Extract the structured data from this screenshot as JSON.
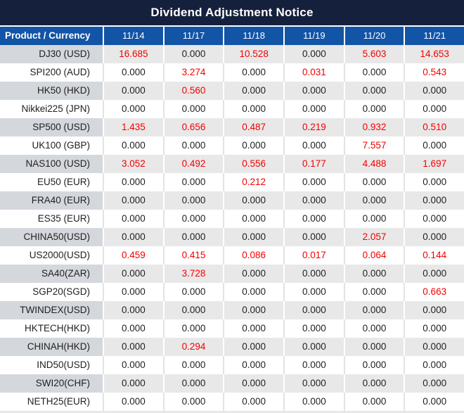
{
  "title": "Dividend Adjustment Notice",
  "table": {
    "product_header": "Product / Currency",
    "date_headers": [
      "11/14",
      "11/17",
      "11/18",
      "11/19",
      "11/20",
      "11/21"
    ],
    "rows": [
      {
        "product": "DJ30 (USD)",
        "values": [
          "16.685",
          "0.000",
          "10.528",
          "0.000",
          "5.603",
          "14.653"
        ],
        "red": [
          true,
          false,
          true,
          false,
          true,
          true
        ]
      },
      {
        "product": "SPI200 (AUD)",
        "values": [
          "0.000",
          "3.274",
          "0.000",
          "0.031",
          "0.000",
          "0.543"
        ],
        "red": [
          false,
          true,
          false,
          true,
          false,
          true
        ]
      },
      {
        "product": "HK50 (HKD)",
        "values": [
          "0.000",
          "0.560",
          "0.000",
          "0.000",
          "0.000",
          "0.000"
        ],
        "red": [
          false,
          true,
          false,
          false,
          false,
          false
        ]
      },
      {
        "product": "Nikkei225 (JPN)",
        "values": [
          "0.000",
          "0.000",
          "0.000",
          "0.000",
          "0.000",
          "0.000"
        ],
        "red": [
          false,
          false,
          false,
          false,
          false,
          false
        ]
      },
      {
        "product": "SP500 (USD)",
        "values": [
          "1.435",
          "0.656",
          "0.487",
          "0.219",
          "0.932",
          "0.510"
        ],
        "red": [
          true,
          true,
          true,
          true,
          true,
          true
        ]
      },
      {
        "product": "UK100 (GBP)",
        "values": [
          "0.000",
          "0.000",
          "0.000",
          "0.000",
          "7.557",
          "0.000"
        ],
        "red": [
          false,
          false,
          false,
          false,
          true,
          false
        ]
      },
      {
        "product": "NAS100 (USD)",
        "values": [
          "3.052",
          "0.492",
          "0.556",
          "0.177",
          "4.488",
          "1.697"
        ],
        "red": [
          true,
          true,
          true,
          true,
          true,
          true
        ]
      },
      {
        "product": "EU50 (EUR)",
        "values": [
          "0.000",
          "0.000",
          "0.212",
          "0.000",
          "0.000",
          "0.000"
        ],
        "red": [
          false,
          false,
          true,
          false,
          false,
          false
        ]
      },
      {
        "product": "FRA40 (EUR)",
        "values": [
          "0.000",
          "0.000",
          "0.000",
          "0.000",
          "0.000",
          "0.000"
        ],
        "red": [
          false,
          false,
          false,
          false,
          false,
          false
        ]
      },
      {
        "product": "ES35 (EUR)",
        "values": [
          "0.000",
          "0.000",
          "0.000",
          "0.000",
          "0.000",
          "0.000"
        ],
        "red": [
          false,
          false,
          false,
          false,
          false,
          false
        ]
      },
      {
        "product": "CHINA50(USD)",
        "values": [
          "0.000",
          "0.000",
          "0.000",
          "0.000",
          "2.057",
          "0.000"
        ],
        "red": [
          false,
          false,
          false,
          false,
          true,
          false
        ]
      },
      {
        "product": "US2000(USD)",
        "values": [
          "0.459",
          "0.415",
          "0.086",
          "0.017",
          "0.064",
          "0.144"
        ],
        "red": [
          true,
          true,
          true,
          true,
          true,
          true
        ]
      },
      {
        "product": "SA40(ZAR)",
        "values": [
          "0.000",
          "3.728",
          "0.000",
          "0.000",
          "0.000",
          "0.000"
        ],
        "red": [
          false,
          true,
          false,
          false,
          false,
          false
        ]
      },
      {
        "product": "SGP20(SGD)",
        "values": [
          "0.000",
          "0.000",
          "0.000",
          "0.000",
          "0.000",
          "0.663"
        ],
        "red": [
          false,
          false,
          false,
          false,
          false,
          true
        ]
      },
      {
        "product": "TWINDEX(USD)",
        "values": [
          "0.000",
          "0.000",
          "0.000",
          "0.000",
          "0.000",
          "0.000"
        ],
        "red": [
          false,
          false,
          false,
          false,
          false,
          false
        ]
      },
      {
        "product": "HKTECH(HKD)",
        "values": [
          "0.000",
          "0.000",
          "0.000",
          "0.000",
          "0.000",
          "0.000"
        ],
        "red": [
          false,
          false,
          false,
          false,
          false,
          false
        ]
      },
      {
        "product": "CHINAH(HKD)",
        "values": [
          "0.000",
          "0.294",
          "0.000",
          "0.000",
          "0.000",
          "0.000"
        ],
        "red": [
          false,
          true,
          false,
          false,
          false,
          false
        ]
      },
      {
        "product": "IND50(USD)",
        "values": [
          "0.000",
          "0.000",
          "0.000",
          "0.000",
          "0.000",
          "0.000"
        ],
        "red": [
          false,
          false,
          false,
          false,
          false,
          false
        ]
      },
      {
        "product": "SWI20(CHF)",
        "values": [
          "0.000",
          "0.000",
          "0.000",
          "0.000",
          "0.000",
          "0.000"
        ],
        "red": [
          false,
          false,
          false,
          false,
          false,
          false
        ]
      },
      {
        "product": "NETH25(EUR)",
        "values": [
          "0.000",
          "0.000",
          "0.000",
          "0.000",
          "0.000",
          "0.000"
        ],
        "red": [
          false,
          false,
          false,
          false,
          false,
          false
        ]
      }
    ]
  },
  "colors": {
    "title_bar_bg": "#15203d",
    "header_bg": "#1254a6",
    "highlight_red": "#f40000",
    "row_gray_value_bg": "#e8e8e8",
    "row_gray_product_bg": "#d4d7dc",
    "text_dark": "#1f1f1f",
    "text_white": "#ffffff"
  }
}
